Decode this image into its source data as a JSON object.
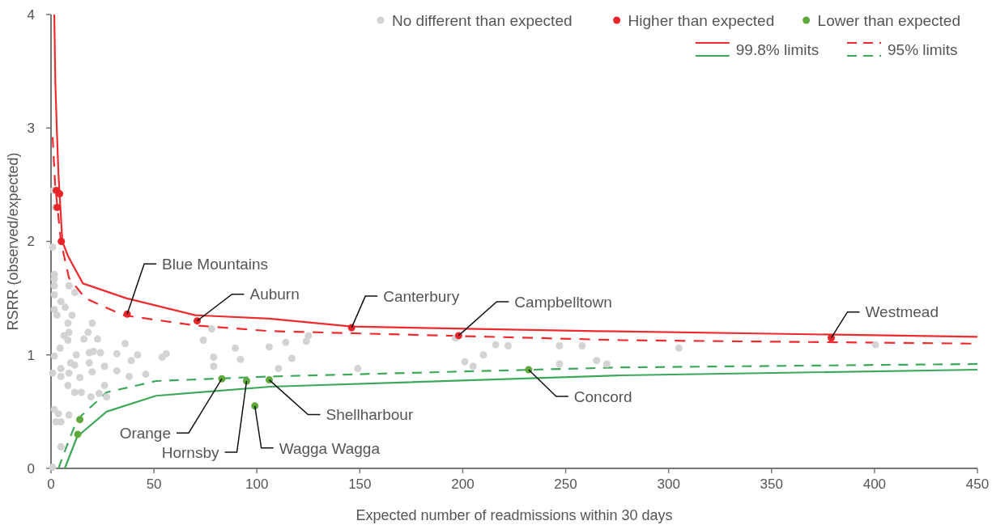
{
  "chart_data": {
    "type": "scatter",
    "xlabel": "Expected number of readmissions within 30 days",
    "ylabel": "RSRR (observed/expected)",
    "xlim": [
      0,
      450
    ],
    "ylim": [
      0,
      4
    ],
    "xticks": [
      0,
      50,
      100,
      150,
      200,
      250,
      300,
      350,
      400,
      450
    ],
    "yticks": [
      0,
      1,
      2,
      3,
      4
    ],
    "grid": false,
    "legend": "top right",
    "marker": "circle",
    "series": [
      {
        "name": "No different than expected",
        "color": "#d3d3d3",
        "x": [
          0.8,
          1.6,
          1.6,
          1.6,
          8.7,
          11.5,
          1.6,
          4.8,
          6.9,
          1.6,
          10.2,
          2.9,
          8.2,
          20,
          8.7,
          18,
          6.3,
          16,
          22.6,
          8.2,
          36,
          4.4,
          12.3,
          18.6,
          20.6,
          24,
          32,
          42,
          56,
          54,
          39,
          1.6,
          9.5,
          18.6,
          11.5,
          26,
          4.8,
          20,
          32,
          0.8,
          8.7,
          46,
          38,
          14,
          4.8,
          8.2,
          26,
          11.5,
          14.7,
          23.4,
          27,
          19.4,
          1.6,
          3.6,
          8.7,
          2.4,
          4.8,
          4.8,
          0.8,
          74,
          78,
          79,
          79,
          89.5,
          92,
          106,
          114,
          117,
          110.5,
          124,
          125,
          149,
          196.5,
          201,
          205,
          210,
          216,
          222,
          247,
          247,
          258,
          265,
          270,
          305,
          400.5,
          1.2,
          2.2
        ],
        "values": [
          1.95,
          1.71,
          1.67,
          1.61,
          1.61,
          1.55,
          1.53,
          1.47,
          1.42,
          1.4,
          1.35,
          1.35,
          1.28,
          1.28,
          1.2,
          1.2,
          1.17,
          1.14,
          1.14,
          1.13,
          1.1,
          1.06,
          1.0,
          1.02,
          1.03,
          1.02,
          1.01,
          1.0,
          1.01,
          0.98,
          0.95,
          0.99,
          0.93,
          0.93,
          0.91,
          0.9,
          0.88,
          0.85,
          0.86,
          0.84,
          0.84,
          0.83,
          0.81,
          0.8,
          0.81,
          0.73,
          0.73,
          0.67,
          0.67,
          0.66,
          0.63,
          0.63,
          0.52,
          0.48,
          0.47,
          0.41,
          0.41,
          0.19,
          0.01,
          1.13,
          1.23,
          0.98,
          0.9,
          1.06,
          0.96,
          1.07,
          1.11,
          0.97,
          0.88,
          1.12,
          1.17,
          0.88,
          1.15,
          0.94,
          0.9,
          1.0,
          1.09,
          1.08,
          1.08,
          0.92,
          1.08,
          0.95,
          0.92,
          1.06,
          1.09,
          2.45,
          2.3
        ]
      },
      {
        "name": "Higher than expected",
        "color": "#e8262a",
        "x": [
          2.6,
          4.2,
          3,
          5,
          37,
          71,
          146,
          198,
          379
        ],
        "values": [
          2.45,
          2.42,
          2.3,
          2.0,
          1.36,
          1.3,
          1.24,
          1.17,
          1.15
        ]
      },
      {
        "name": "Lower than expected",
        "color": "#5fa83c",
        "x": [
          14,
          13,
          83,
          95,
          99,
          106,
          232
        ],
        "values": [
          0.43,
          0.3,
          0.79,
          0.77,
          0.55,
          0.78,
          0.87
        ]
      },
      {
        "name": "99.8% limits",
        "type": "line",
        "line_style": "solid",
        "marker": "none",
        "color": "#ee2b2f",
        "x": [
          1.6,
          2.1,
          2.8,
          3.6,
          5.5,
          8.3,
          15.5,
          36.5,
          70,
          106,
          146,
          265,
          450
        ],
        "values": [
          4,
          3.4,
          3.0,
          2.6,
          2.0,
          1.87,
          1.63,
          1.5,
          1.35,
          1.32,
          1.25,
          1.21,
          1.16
        ]
      },
      {
        "type": "line",
        "line_style": "solid",
        "marker": "none",
        "color": "#3ea85a",
        "x": [
          6.7,
          12.7,
          27,
          51,
          106.6,
          277,
          450
        ],
        "values": [
          0,
          0.28,
          0.5,
          0.64,
          0.72,
          0.82,
          0.87
        ]
      },
      {
        "name": "95% limits",
        "type": "line",
        "line_style": "dashed",
        "marker": "none",
        "color": "#ee2b2f",
        "x": [
          0.8,
          2,
          4.8,
          8.7,
          16.6,
          35,
          70,
          106,
          277,
          447
        ],
        "values": [
          2.92,
          2.5,
          2.0,
          1.68,
          1.5,
          1.35,
          1.26,
          1.21,
          1.13,
          1.1
        ]
      },
      {
        "type": "line",
        "line_style": "dashed",
        "marker": "none",
        "color": "#3ea85a",
        "x": [
          3.6,
          7.5,
          12.7,
          27,
          51,
          106.6,
          277,
          450
        ],
        "values": [
          0,
          0.19,
          0.43,
          0.67,
          0.77,
          0.81,
          0.89,
          0.92
        ]
      }
    ],
    "annotations": [
      {
        "text": "Blue Mountains",
        "x": 37,
        "y": 1.36
      },
      {
        "text": "Auburn",
        "x": 71,
        "y": 1.3
      },
      {
        "text": "Canterbury",
        "x": 146,
        "y": 1.24
      },
      {
        "text": "Campbelltown",
        "x": 198,
        "y": 1.17
      },
      {
        "text": "Westmead",
        "x": 379,
        "y": 1.15
      },
      {
        "text": "Orange",
        "x": 83,
        "y": 0.79
      },
      {
        "text": "Hornsby",
        "x": 95,
        "y": 0.77
      },
      {
        "text": "Wagga Wagga",
        "x": 99,
        "y": 0.55
      },
      {
        "text": "Shellharbour",
        "x": 106,
        "y": 0.78
      },
      {
        "text": "Concord",
        "x": 232,
        "y": 0.87
      }
    ]
  }
}
